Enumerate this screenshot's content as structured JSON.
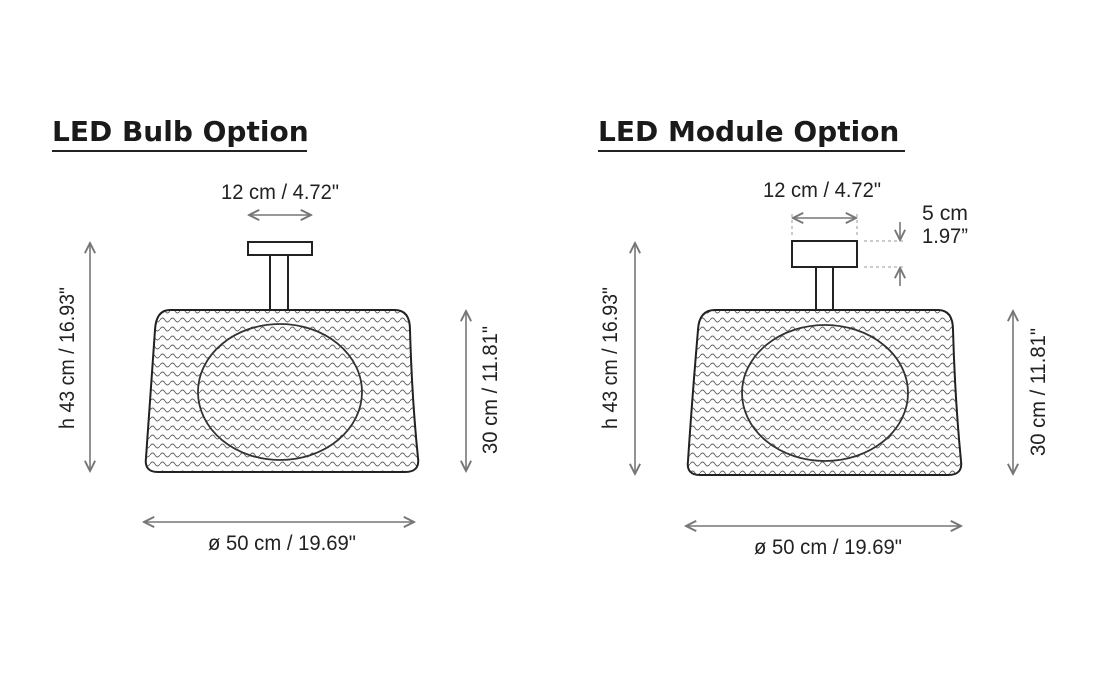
{
  "panels": [
    {
      "title": "LED Bulb Option",
      "canopy_width": "12 cm / 4.72\"",
      "height": "h 43 cm / 16.93\"",
      "shade_height": "30 cm / 11.81\"",
      "diameter": "ø 50 cm / 19.69\""
    },
    {
      "title": "LED Module Option",
      "canopy_width": "12 cm / 4.72\"",
      "canopy_height_cm": "5 cm",
      "canopy_height_in": "1.97”",
      "height": "h 43 cm / 16.93\"",
      "shade_height": "30 cm / 11.81\"",
      "diameter": "ø 50 cm / 19.69\""
    }
  ]
}
